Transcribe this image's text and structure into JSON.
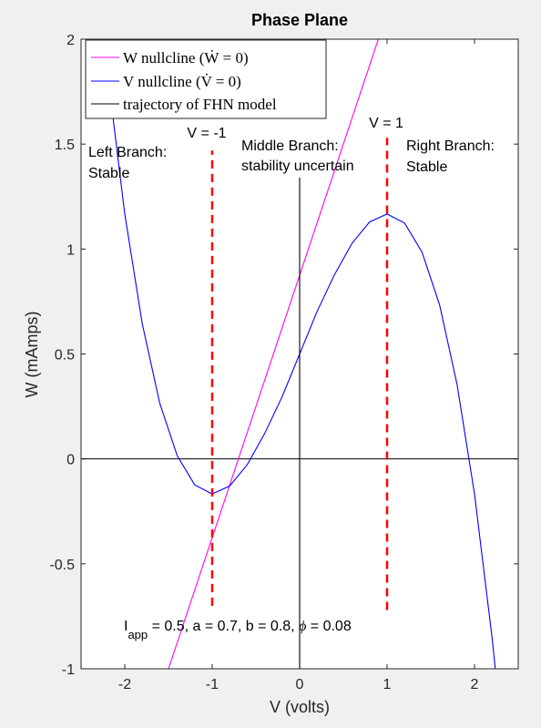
{
  "chart_data": {
    "type": "line",
    "title": "Phase Plane",
    "xlabel": "V (volts)",
    "ylabel": "W (mAmps)",
    "xlim": [
      -2.5,
      2.5
    ],
    "ylim": [
      -1,
      2
    ],
    "xticks": [
      -2,
      -1,
      0,
      1,
      2
    ],
    "xtick_labels": [
      "-2",
      "-1",
      "0",
      "1",
      "2"
    ],
    "yticks": [
      -1,
      -0.5,
      0,
      0.5,
      1,
      1.5,
      2
    ],
    "ytick_labels": [
      "-1",
      "-0.5",
      "0",
      "0.5",
      "1",
      "1.5",
      "2"
    ],
    "grid": false,
    "legend_position": "top-left",
    "colors": {
      "w_nullcline": "#ff00ff",
      "v_nullcline": "#0000ff",
      "trajectory": "#000000",
      "branch_divider": "#ff0000"
    },
    "series": [
      {
        "name": "W nullcline (Ẇ = 0)",
        "x": [
          -1.5,
          0,
          2.5
        ],
        "y": [
          -1.0,
          0.875,
          4.0
        ]
      },
      {
        "name": "V nullcline (V̇ = 0)",
        "x": [
          -2.2,
          -2.0,
          -1.8,
          -1.6,
          -1.4,
          -1.2,
          -1.0,
          -0.8,
          -0.6,
          -0.4,
          -0.2,
          0.0,
          0.2,
          0.4,
          0.6,
          0.8,
          1.0,
          1.2,
          1.4,
          1.6,
          1.8,
          2.0,
          2.2,
          2.25
        ],
        "y": [
          1.849,
          1.167,
          0.644,
          0.265,
          0.015,
          -0.124,
          -0.167,
          -0.129,
          -0.028,
          0.121,
          0.297,
          0.5,
          0.703,
          0.879,
          1.028,
          1.129,
          1.167,
          1.124,
          0.985,
          0.735,
          0.356,
          -0.167,
          -0.849,
          -1.047
        ]
      },
      {
        "name": "trajectory of FHN model",
        "x": [
          0,
          0
        ],
        "y": [
          -1.0,
          1.34
        ]
      }
    ],
    "dividers": [
      {
        "label": "V = -1",
        "x": -1,
        "y_range": [
          -0.7,
          1.47
        ]
      },
      {
        "label": "V = 1",
        "x": 1,
        "y_range": [
          -0.72,
          1.53
        ]
      }
    ],
    "annotations": [
      {
        "lines": [
          "Left Branch:",
          "Stable"
        ]
      },
      {
        "lines": [
          "Middle Branch:",
          "stability uncertain"
        ]
      },
      {
        "lines": [
          "Right Branch:",
          "Stable"
        ]
      }
    ],
    "params": {
      "i_symbol": "I",
      "i_subscript": "app",
      "rest": " = 0.5, a = 0.7, b = 0.8, ",
      "phi_symbol": "ϕ",
      "phi_value": " = 0.08"
    }
  }
}
